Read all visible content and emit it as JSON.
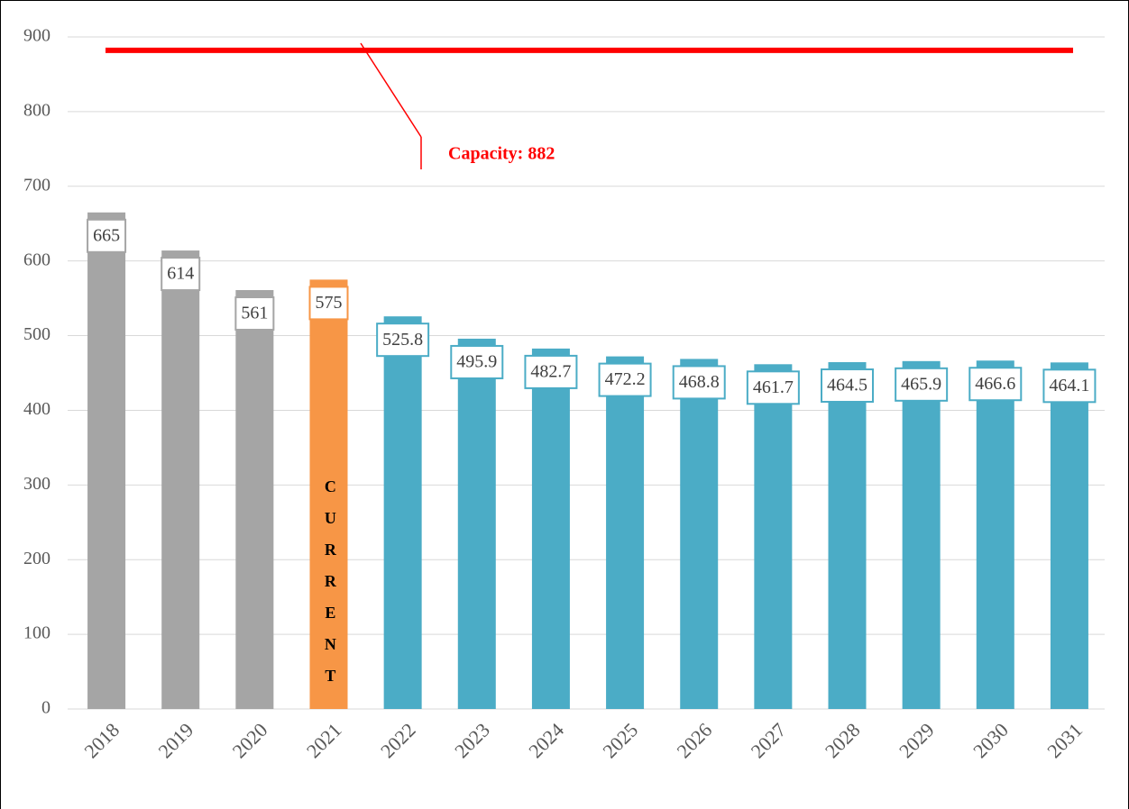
{
  "chart_data": {
    "type": "bar",
    "categories": [
      "2018",
      "2019",
      "2020",
      "2021",
      "2022",
      "2023",
      "2024",
      "2025",
      "2026",
      "2027",
      "2028",
      "2029",
      "2030",
      "2031"
    ],
    "values": [
      665,
      614,
      561,
      575,
      525.8,
      495.9,
      482.7,
      472.2,
      468.8,
      461.7,
      464.5,
      465.9,
      466.6,
      464.1
    ],
    "colors": [
      "#a5a5a5",
      "#a5a5a5",
      "#a5a5a5",
      "#f79646",
      "#4bacc6",
      "#4bacc6",
      "#4bacc6",
      "#4bacc6",
      "#4bacc6",
      "#4bacc6",
      "#4bacc6",
      "#4bacc6",
      "#4bacc6",
      "#4bacc6"
    ],
    "ylim": [
      0,
      900
    ],
    "yticks": [
      0,
      100,
      200,
      300,
      400,
      500,
      600,
      700,
      800,
      900
    ],
    "grid": true,
    "capacity": {
      "value": 882,
      "label": "Capacity: 882",
      "color": "#ff0000"
    },
    "bar_annotation": {
      "category_index": 3,
      "text": "CURRENT"
    }
  }
}
